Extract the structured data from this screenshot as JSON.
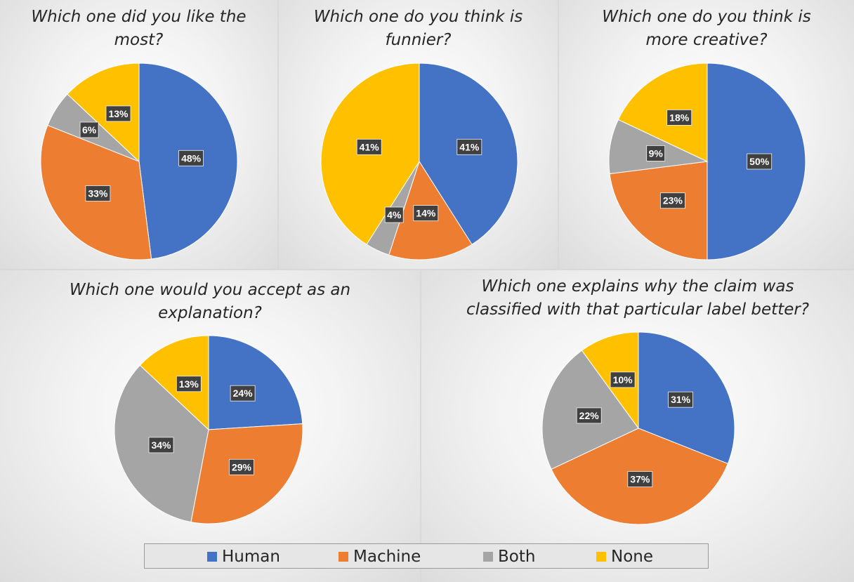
{
  "colors": {
    "Human": "#4472c4",
    "Machine": "#ed7d31",
    "Both": "#a5a5a5",
    "None": "#ffc000",
    "label_box": "#404040",
    "label_text": "#ffffff"
  },
  "legend": {
    "items": [
      "Human",
      "Machine",
      "Both",
      "None"
    ]
  },
  "chart_data": [
    {
      "type": "pie",
      "title": "Which one did you like the most?",
      "title_lines": [
        "Which one did you like the",
        "most?"
      ],
      "categories": [
        "Human",
        "Machine",
        "Both",
        "None"
      ],
      "values": [
        48,
        33,
        6,
        13
      ],
      "labels": [
        "48%",
        "33%",
        "6%",
        "13%"
      ]
    },
    {
      "type": "pie",
      "title": "Which one do you think is funnier?",
      "title_lines": [
        "Which one do you think is",
        "funnier?"
      ],
      "categories": [
        "Human",
        "Machine",
        "Both",
        "None"
      ],
      "values": [
        41,
        14,
        4,
        41
      ],
      "labels": [
        "41%",
        "14%",
        "4%",
        "41%"
      ]
    },
    {
      "type": "pie",
      "title": "Which one do you think is more creative?",
      "title_lines": [
        "Which one do you think is",
        "more creative?"
      ],
      "categories": [
        "Human",
        "Machine",
        "Both",
        "None"
      ],
      "values": [
        50,
        23,
        9,
        18
      ],
      "labels": [
        "50%",
        "23%",
        "9%",
        "18%"
      ]
    },
    {
      "type": "pie",
      "title": "Which one would you accept as an explanation?",
      "title_lines": [
        "Which one would you accept as an",
        "explanation?"
      ],
      "categories": [
        "Human",
        "Machine",
        "Both",
        "None"
      ],
      "values": [
        24,
        29,
        34,
        13
      ],
      "labels": [
        "24%",
        "29%",
        "34%",
        "13%"
      ]
    },
    {
      "type": "pie",
      "title": "Which one explains why the claim was classified with that particular label better?",
      "title_lines": [
        "Which one explains why the claim was",
        "classified with that particular label better?"
      ],
      "categories": [
        "Human",
        "Machine",
        "Both",
        "None"
      ],
      "values": [
        31,
        37,
        22,
        10
      ],
      "labels": [
        "31%",
        "37%",
        "22%",
        "10%"
      ]
    }
  ]
}
